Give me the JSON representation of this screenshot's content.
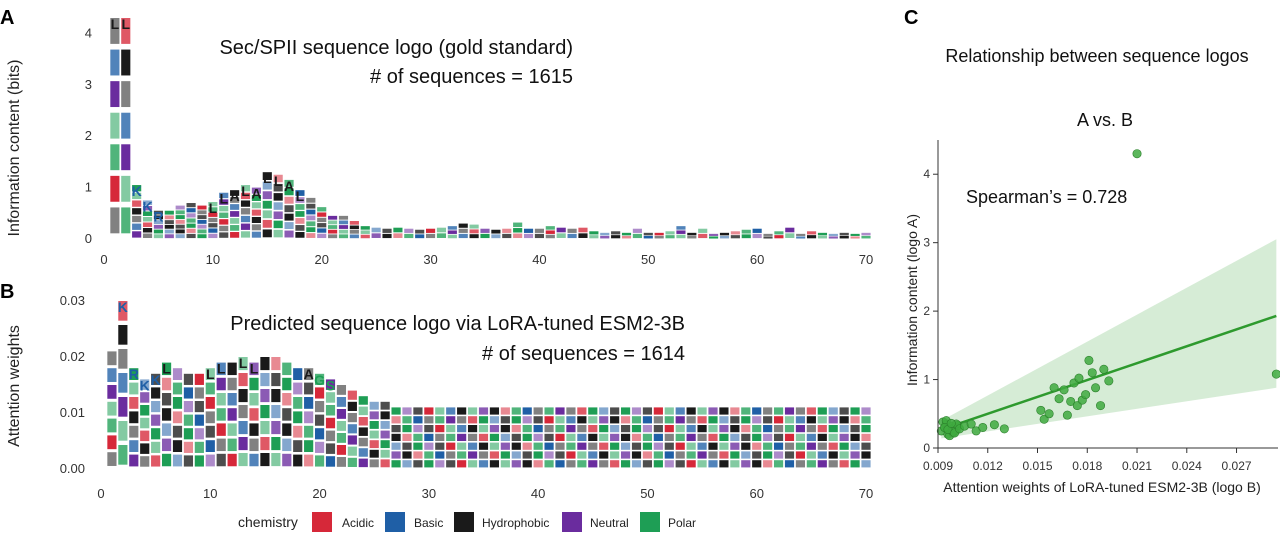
{
  "panels": {
    "a_label": "A",
    "b_label": "B",
    "c_label": "C"
  },
  "colors": {
    "acidic": "#d62839",
    "basic": "#1f5fa6",
    "hydrophobic": "#1a1a1a",
    "neutral": "#6a2c9e",
    "polar": "#1e9e55",
    "scatter_point": "#3faa3f",
    "regression": "#2e9a2e",
    "band": "#cfe9cf"
  },
  "chart_data": [
    {
      "id": "A",
      "type": "area",
      "title": "Sec/SPII sequence logo (gold standard)",
      "subtitle": "# of sequences = 1615",
      "xlabel": "",
      "ylabel": "Information content (bits)",
      "xlim": [
        0,
        70
      ],
      "ylim": [
        0,
        4.3
      ],
      "xticks": [
        "0",
        "10",
        "20",
        "30",
        "40",
        "50",
        "60",
        "70"
      ],
      "yticks": [
        "0",
        "1",
        "2",
        "3",
        "4"
      ],
      "x": [
        1,
        2,
        3,
        4,
        5,
        6,
        7,
        8,
        9,
        10,
        11,
        12,
        13,
        14,
        15,
        16,
        17,
        18,
        19,
        20,
        21,
        22,
        23,
        24,
        25,
        26,
        27,
        28,
        29,
        30,
        31,
        32,
        33,
        34,
        35,
        36,
        37,
        38,
        39,
        40,
        41,
        42,
        43,
        44,
        45,
        46,
        47,
        48,
        49,
        50,
        51,
        52,
        53,
        54,
        55,
        56,
        57,
        58,
        59,
        60,
        61,
        62,
        63,
        64,
        65,
        66,
        67,
        68,
        69,
        70
      ],
      "values": [
        4.3,
        4.3,
        1.05,
        0.75,
        0.55,
        0.55,
        0.65,
        0.7,
        0.65,
        0.72,
        0.9,
        0.95,
        1.05,
        1.0,
        1.3,
        1.25,
        1.15,
        0.95,
        0.8,
        0.62,
        0.45,
        0.45,
        0.35,
        0.25,
        0.22,
        0.2,
        0.22,
        0.2,
        0.18,
        0.2,
        0.22,
        0.25,
        0.3,
        0.28,
        0.2,
        0.18,
        0.2,
        0.32,
        0.2,
        0.2,
        0.25,
        0.22,
        0.2,
        0.22,
        0.15,
        0.12,
        0.15,
        0.12,
        0.2,
        0.12,
        0.12,
        0.15,
        0.25,
        0.12,
        0.2,
        0.1,
        0.12,
        0.15,
        0.18,
        0.2,
        0.1,
        0.15,
        0.22,
        0.1,
        0.15,
        0.12,
        0.1,
        0.12,
        0.1,
        0.12
      ],
      "labels": {
        "1": "L",
        "2": "L",
        "3": "K",
        "4": "K",
        "5": "R",
        "10": "L",
        "11": "L",
        "12": "A",
        "13": "L",
        "14": "A",
        "15": "L",
        "16": "L",
        "17": "A",
        "18": "L"
      }
    },
    {
      "id": "B",
      "type": "area",
      "title": "Predicted sequence logo via LoRA-tuned ESM2-3B",
      "subtitle": "# of sequences = 1614",
      "xlabel": "",
      "ylabel": "Attention weights",
      "xlim": [
        0,
        70
      ],
      "ylim": [
        0,
        0.03
      ],
      "xticks": [
        "0",
        "10",
        "20",
        "30",
        "40",
        "50",
        "60",
        "70"
      ],
      "yticks": [
        "0.00",
        "0.01",
        "0.02",
        "0.03"
      ],
      "x": [
        1,
        2,
        3,
        4,
        5,
        6,
        7,
        8,
        9,
        10,
        11,
        12,
        13,
        14,
        15,
        16,
        17,
        18,
        19,
        20,
        21,
        22,
        23,
        24,
        25,
        26,
        27,
        28,
        29,
        30,
        31,
        32,
        33,
        34,
        35,
        36,
        37,
        38,
        39,
        40,
        41,
        42,
        43,
        44,
        45,
        46,
        47,
        48,
        49,
        50,
        51,
        52,
        53,
        54,
        55,
        56,
        57,
        58,
        59,
        60,
        61,
        62,
        63,
        64,
        65,
        66,
        67,
        68,
        69,
        70
      ],
      "values": [
        0.021,
        0.03,
        0.018,
        0.016,
        0.017,
        0.019,
        0.018,
        0.017,
        0.017,
        0.018,
        0.019,
        0.019,
        0.02,
        0.019,
        0.02,
        0.02,
        0.019,
        0.018,
        0.018,
        0.017,
        0.016,
        0.015,
        0.014,
        0.013,
        0.012,
        0.012,
        0.011,
        0.011,
        0.011,
        0.011,
        0.011,
        0.011,
        0.011,
        0.011,
        0.011,
        0.011,
        0.011,
        0.011,
        0.011,
        0.011,
        0.011,
        0.011,
        0.011,
        0.011,
        0.011,
        0.011,
        0.011,
        0.011,
        0.011,
        0.011,
        0.011,
        0.011,
        0.011,
        0.011,
        0.011,
        0.011,
        0.011,
        0.011,
        0.011,
        0.011,
        0.011,
        0.011,
        0.011,
        0.011,
        0.011,
        0.011,
        0.011,
        0.011,
        0.011,
        0.011
      ],
      "labels": {
        "2": "K",
        "3": "R",
        "4": "K",
        "5": "K",
        "6": "L",
        "10": "L",
        "11": "L",
        "12": "L",
        "13": "L",
        "14": "L",
        "15": "L",
        "19": "A",
        "20": "G",
        "21": "S"
      }
    },
    {
      "id": "C",
      "type": "scatter",
      "title": "Relationship between sequence logos",
      "subtitle": "A vs. B",
      "annotation": "Spearman’s = 0.728",
      "xlabel": "Attention weights of LoRA-tuned ESM2-3B (logo B)",
      "ylabel": "Information content (logo A)",
      "xlim": [
        0.009,
        0.0295
      ],
      "ylim": [
        0,
        4.5
      ],
      "xticks": [
        "0.009",
        "0.012",
        "0.015",
        "0.018",
        "0.021",
        "0.024",
        "0.027"
      ],
      "yticks": [
        "0",
        "1",
        "2",
        "3",
        "4"
      ],
      "x": [
        0.0092,
        0.0094,
        0.0095,
        0.0096,
        0.0097,
        0.0098,
        0.0099,
        0.01,
        0.0101,
        0.0102,
        0.0093,
        0.0095,
        0.0097,
        0.0099,
        0.0101,
        0.0094,
        0.0096,
        0.0098,
        0.01,
        0.0103,
        0.0106,
        0.011,
        0.0113,
        0.0117,
        0.0124,
        0.013,
        0.0152,
        0.0154,
        0.0157,
        0.016,
        0.0163,
        0.0166,
        0.0168,
        0.017,
        0.0172,
        0.0174,
        0.0175,
        0.0177,
        0.0179,
        0.0181,
        0.0183,
        0.0185,
        0.0188,
        0.019,
        0.0193,
        0.021,
        0.0294
      ],
      "y": [
        0.25,
        0.3,
        0.35,
        0.2,
        0.28,
        0.32,
        0.22,
        0.3,
        0.26,
        0.33,
        0.38,
        0.4,
        0.18,
        0.24,
        0.35,
        0.3,
        0.27,
        0.36,
        0.22,
        0.28,
        0.32,
        0.35,
        0.25,
        0.3,
        0.34,
        0.28,
        0.55,
        0.42,
        0.5,
        0.88,
        0.72,
        0.85,
        0.48,
        0.68,
        0.95,
        0.62,
        1.02,
        0.7,
        0.78,
        1.28,
        1.1,
        0.88,
        0.62,
        1.15,
        0.98,
        4.3,
        1.08
      ],
      "fit": {
        "x": [
          0.0092,
          0.0294
        ],
        "y": [
          0.27,
          1.93
        ]
      },
      "band": {
        "lower": [
          0.14,
          0.88
        ],
        "upper": [
          0.4,
          3.05
        ]
      }
    }
  ],
  "legend": {
    "title": "chemistry",
    "items": [
      "Acidic",
      "Basic",
      "Hydrophobic",
      "Neutral",
      "Polar"
    ]
  }
}
